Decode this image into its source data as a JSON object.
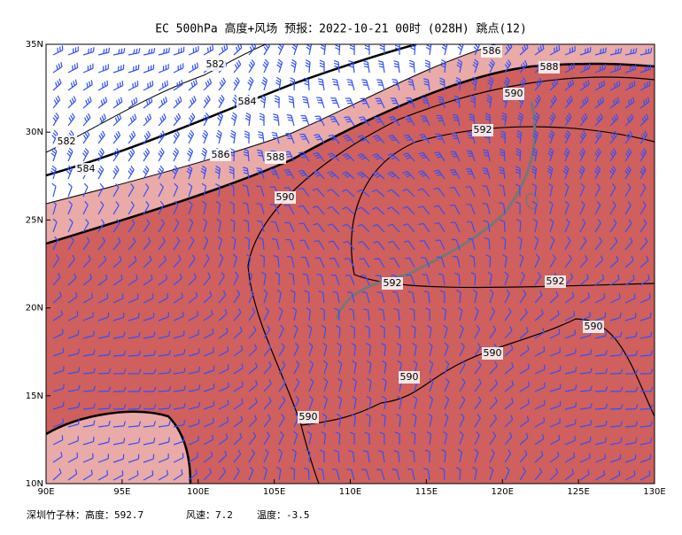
{
  "title": "EC 500hPa 高度+风场  预报：2022-10-21 00时 (028H) 跳点(12)",
  "x_axis": {
    "labels": [
      "90E",
      "95E",
      "100E",
      "105E",
      "110E",
      "115E",
      "120E",
      "125E",
      "130E"
    ]
  },
  "y_axis": {
    "labels": [
      "10N",
      "15N",
      "20N",
      "25N",
      "30N",
      "35N"
    ]
  },
  "contour_labels": [
    582,
    582,
    584,
    584,
    586,
    588,
    590,
    586,
    588,
    590,
    592,
    592,
    592,
    590,
    590,
    590,
    590
  ],
  "footer": [
    "深圳竹子林：高度：592.7",
    "风速：7.2",
    "温度：-3.5"
  ]
}
